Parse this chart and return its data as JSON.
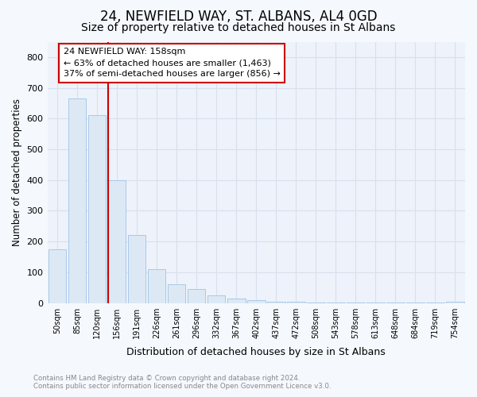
{
  "title": "24, NEWFIELD WAY, ST. ALBANS, AL4 0GD",
  "subtitle": "Size of property relative to detached houses in St Albans",
  "xlabel": "Distribution of detached houses by size in St Albans",
  "ylabel": "Number of detached properties",
  "categories": [
    "50sqm",
    "85sqm",
    "120sqm",
    "156sqm",
    "191sqm",
    "226sqm",
    "261sqm",
    "296sqm",
    "332sqm",
    "367sqm",
    "402sqm",
    "437sqm",
    "472sqm",
    "508sqm",
    "543sqm",
    "578sqm",
    "613sqm",
    "648sqm",
    "684sqm",
    "719sqm",
    "754sqm"
  ],
  "values": [
    175,
    665,
    610,
    400,
    220,
    110,
    60,
    45,
    25,
    15,
    10,
    5,
    3,
    2,
    1,
    1,
    1,
    1,
    1,
    1,
    5
  ],
  "bar_color": "#dce9f5",
  "bar_edge_color": "#aac8e8",
  "property_line_index": 3,
  "property_line_color": "#cc0000",
  "annotation_line1": "24 NEWFIELD WAY: 158sqm",
  "annotation_line2": "← 63% of detached houses are smaller (1,463)",
  "annotation_line3": "37% of semi-detached houses are larger (856) →",
  "annotation_box_color": "#cc0000",
  "footer_text": "Contains HM Land Registry data © Crown copyright and database right 2024.\nContains public sector information licensed under the Open Government Licence v3.0.",
  "ylim": [
    0,
    850
  ],
  "yticks": [
    0,
    100,
    200,
    300,
    400,
    500,
    600,
    700,
    800
  ],
  "background_color": "#f5f8fd",
  "grid_color": "#d8e0ec",
  "title_fontsize": 12,
  "subtitle_fontsize": 10,
  "axis_bg_color": "#eef2fa"
}
